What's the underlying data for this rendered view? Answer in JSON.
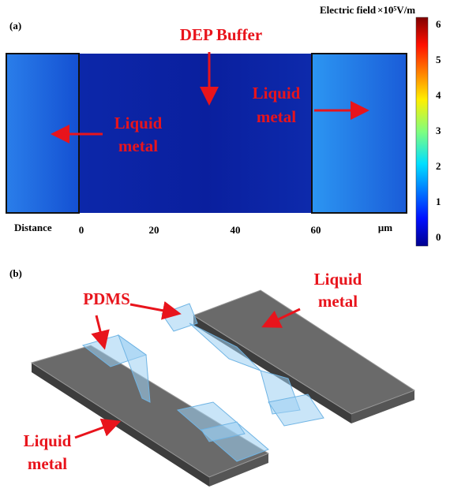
{
  "panel_a": {
    "label": "(a)",
    "title": "DEP Buffer",
    "left_label": [
      "Liquid",
      "metal"
    ],
    "right_label": [
      "Liquid",
      "metal"
    ],
    "axis": {
      "name": "Distance",
      "ticks": [
        "0",
        "20",
        "40",
        "60"
      ],
      "unit": "μm"
    },
    "colorbar": {
      "title": "Electric field",
      "unit": "×10⁵V/m",
      "ticks": [
        0,
        1,
        2,
        3,
        4,
        5,
        6
      ]
    }
  },
  "panel_b": {
    "label": "(b)",
    "pdms_label": "PDMS",
    "right_label": [
      "Liquid",
      "metal"
    ],
    "left_label": [
      "Liquid",
      "metal"
    ]
  }
}
